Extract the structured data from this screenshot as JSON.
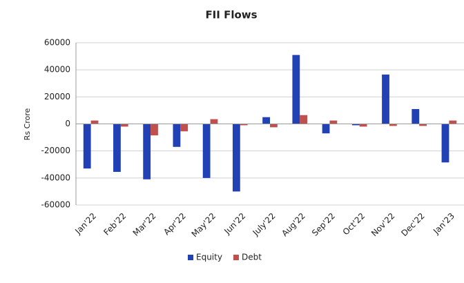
{
  "chart_data": {
    "type": "bar",
    "title": "FII Flows",
    "y_label": "Rs Crore",
    "categories": [
      "Jan'22",
      "Feb'22",
      "Mar'22",
      "Apr'22",
      "May'22",
      "Jun'22",
      "July'22",
      "Aug'22",
      "Sep'22",
      "Oct'22",
      "Nov'22",
      "Dec'22",
      "Jan'23"
    ],
    "series": [
      {
        "name": "Equity",
        "color": "#2141b5",
        "values": [
          -33000,
          -35500,
          -41000,
          -17000,
          -40000,
          -50000,
          5000,
          51000,
          -7000,
          -1000,
          36500,
          11000,
          -28500
        ]
      },
      {
        "name": "Debt",
        "color": "#c0504d",
        "values": [
          2500,
          -2000,
          -8500,
          -5500,
          3500,
          -1000,
          -2500,
          6500,
          2500,
          -2000,
          -1500,
          -1500,
          2500
        ]
      }
    ],
    "ylim": [
      -60000,
      60000
    ],
    "yticks": [
      -60000,
      -40000,
      -20000,
      0,
      20000,
      40000,
      60000
    ],
    "grid": true,
    "legend": "bottom"
  }
}
